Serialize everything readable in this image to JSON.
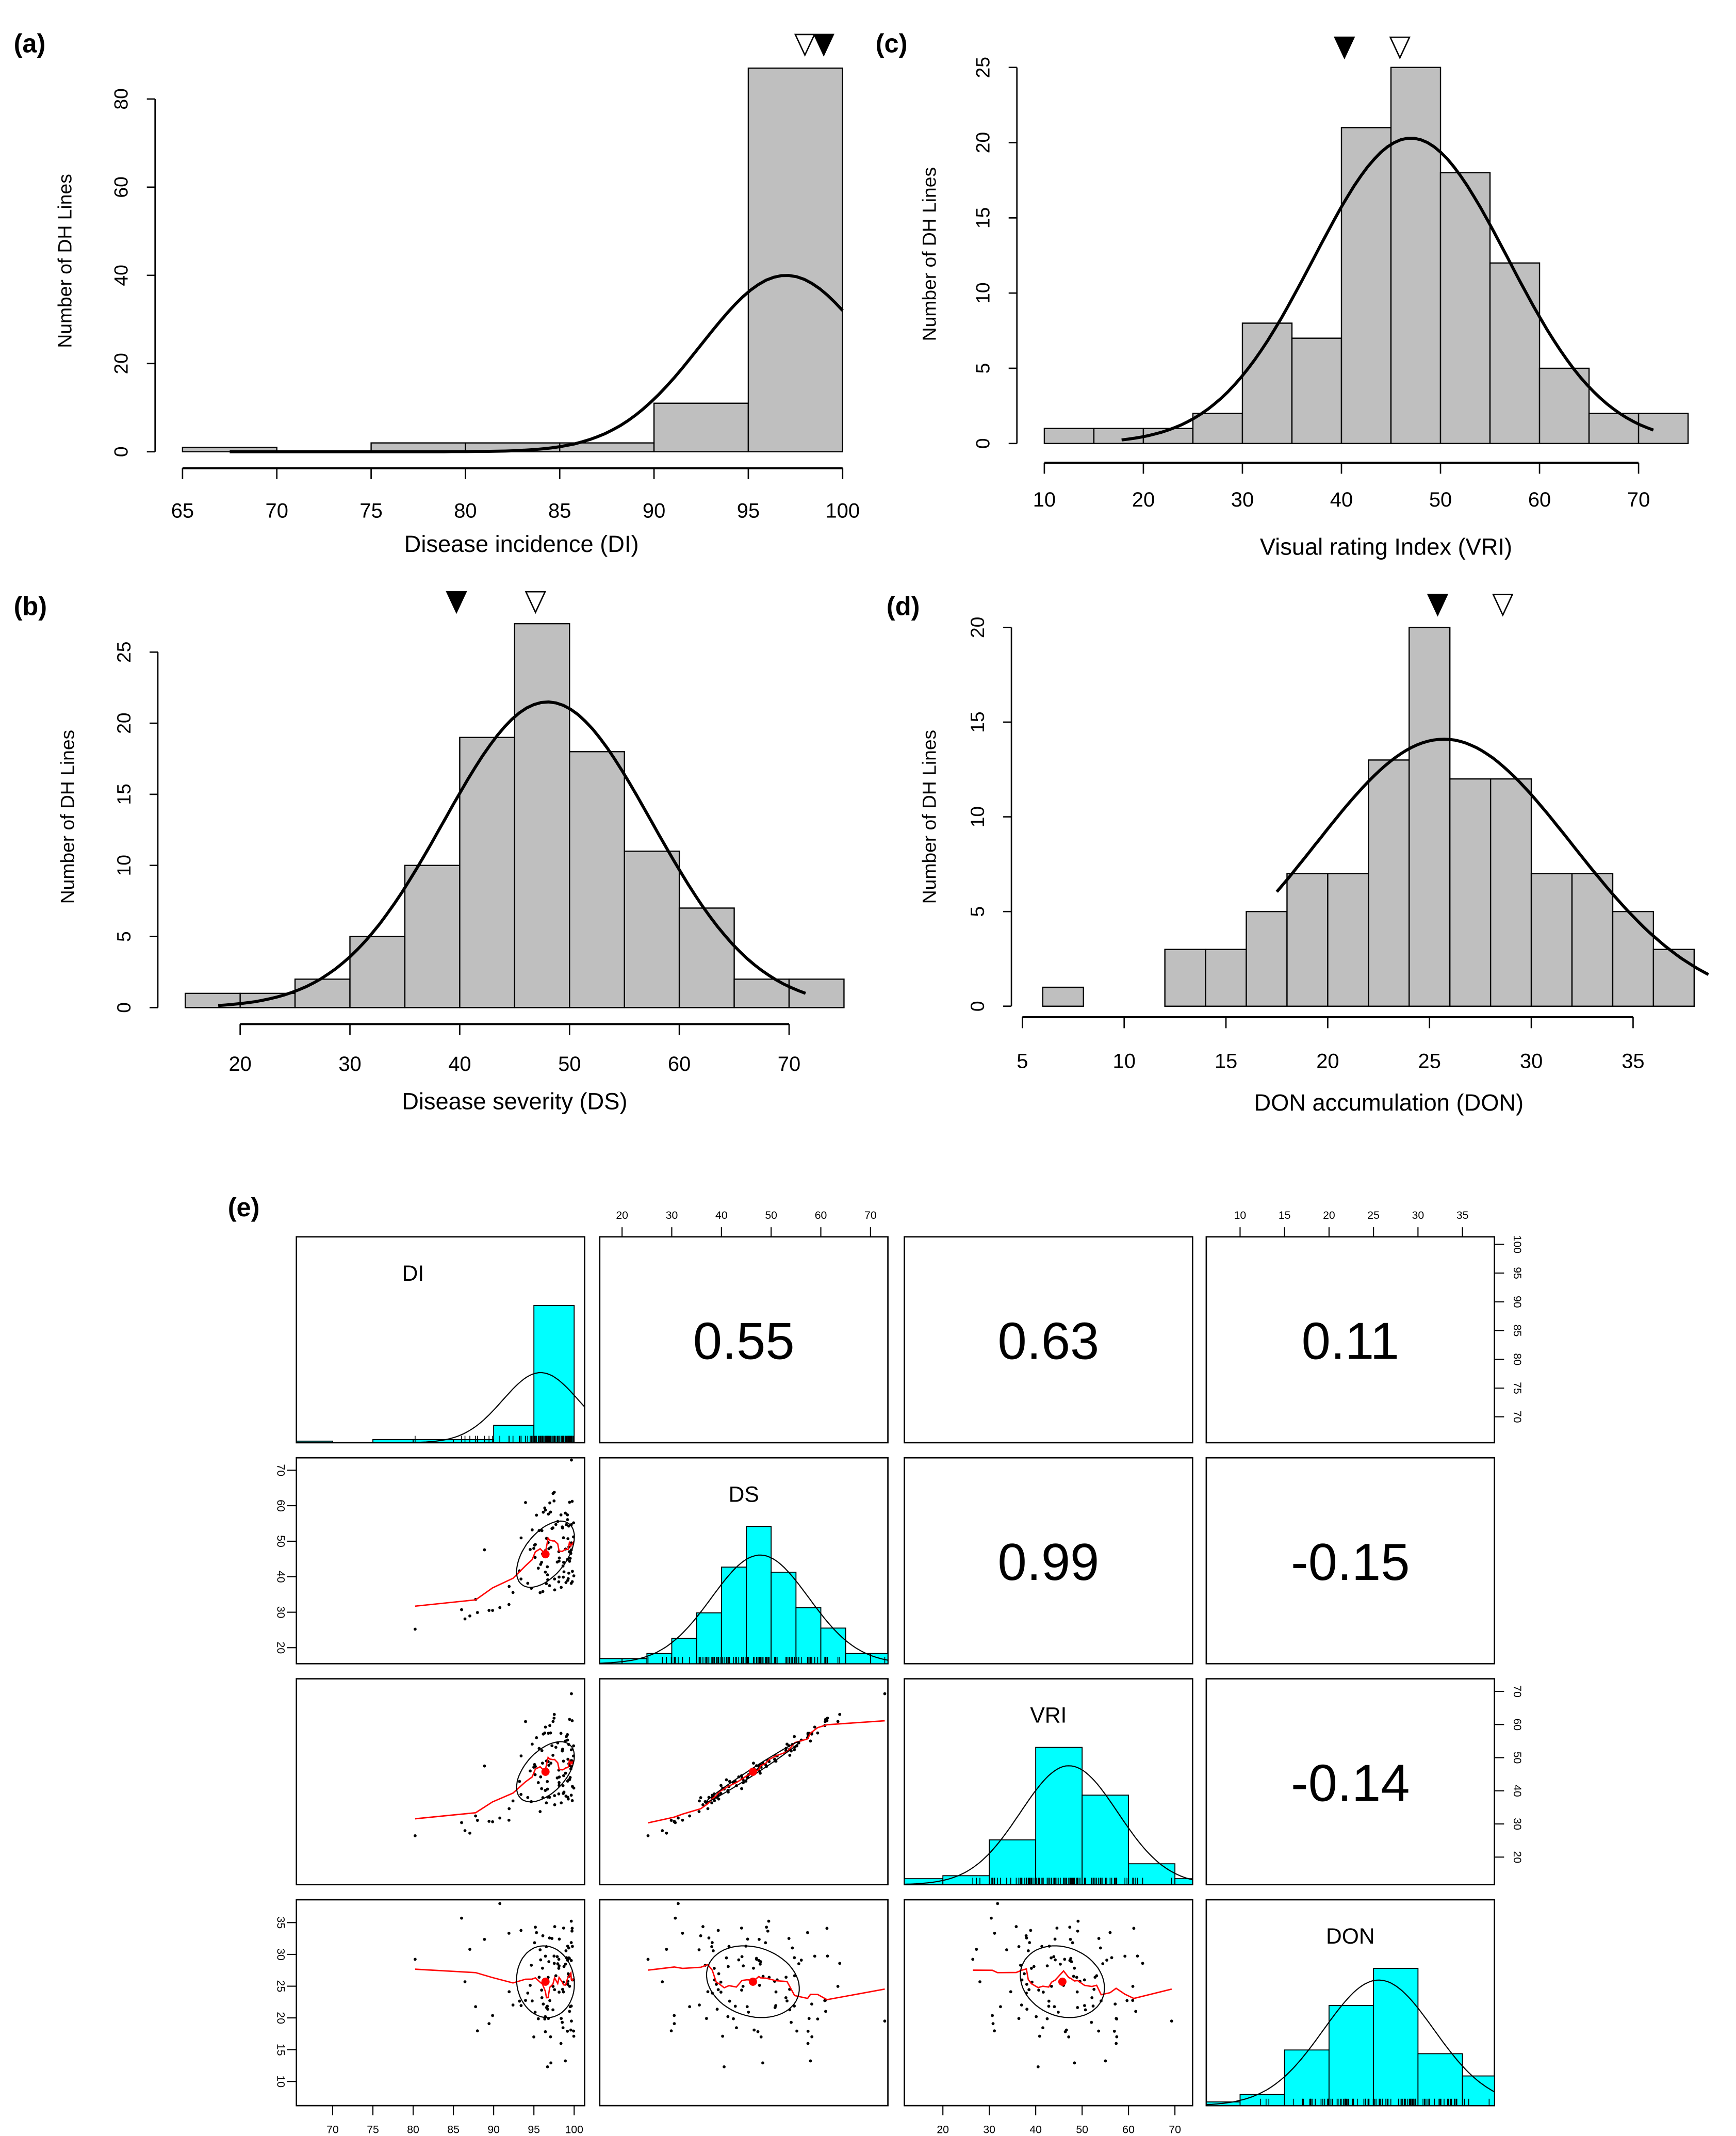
{
  "chart_data": [
    {
      "panel": "(a)",
      "type": "bar",
      "xlabel": "Disease incidence (DI)",
      "ylabel": "Number of DH Lines",
      "bin_start": 65,
      "bin_width": 5,
      "counts": [
        1,
        0,
        2,
        2,
        2,
        11,
        87
      ],
      "xticks": [
        65,
        70,
        75,
        80,
        85,
        90,
        95,
        100
      ],
      "yticks": [
        0,
        20,
        40,
        60,
        80
      ],
      "xlim": [
        65,
        100
      ],
      "ylim": [
        0,
        80
      ],
      "markers": {
        "filled": 99.0,
        "open": 98.0
      },
      "normal_curve": {
        "mean": 97,
        "sd": 4.5,
        "peak": 40,
        "range": [
          67.5,
          100
        ]
      }
    },
    {
      "panel": "(b)",
      "type": "bar",
      "xlabel": "Disease severity (DS)",
      "ylabel": "Number of DH Lines",
      "bin_start": 15,
      "bin_width": 5,
      "counts": [
        1,
        1,
        2,
        5,
        10,
        19,
        27,
        18,
        11,
        7,
        2,
        2
      ],
      "xticks": [
        20,
        30,
        40,
        50,
        60,
        70
      ],
      "yticks": [
        0,
        5,
        10,
        15,
        20,
        25
      ],
      "xlim": [
        20,
        70
      ],
      "ylim": [
        0,
        25
      ],
      "markers": {
        "filled": 39.7,
        "open": 46.9
      },
      "normal_curve": {
        "mean": 48,
        "sd": 9.5,
        "peak": 21.5,
        "range": [
          18,
          71.5
        ]
      }
    },
    {
      "panel": "(c)",
      "type": "bar",
      "xlabel": "Visual rating Index (VRI)",
      "ylabel": "Number of DH Lines",
      "bin_start": 10,
      "bin_width": 5,
      "counts": [
        1,
        1,
        1,
        2,
        8,
        7,
        21,
        25,
        18,
        12,
        5,
        2,
        2
      ],
      "xticks": [
        10,
        20,
        30,
        40,
        50,
        60,
        70
      ],
      "yticks": [
        0,
        5,
        10,
        15,
        20,
        25
      ],
      "xlim": [
        10,
        70
      ],
      "ylim": [
        0,
        25
      ],
      "markers": {
        "filled": 40.3,
        "open": 45.9
      },
      "normal_curve": {
        "mean": 47,
        "sd": 9.8,
        "peak": 20.3,
        "range": [
          17.8,
          71.5
        ]
      }
    },
    {
      "panel": "(d)",
      "type": "bar",
      "xlabel": "DON accumulation (DON)",
      "ylabel": "Number of DH Lines",
      "bin_start": 6,
      "bin_width": 2,
      "counts": [
        1,
        0,
        0,
        3,
        3,
        5,
        7,
        7,
        13,
        20,
        12,
        12,
        7,
        7,
        5,
        3
      ],
      "xticks": [
        5,
        10,
        15,
        20,
        25,
        30,
        35
      ],
      "yticks": [
        0,
        5,
        10,
        15,
        20
      ],
      "xlim": [
        5,
        35
      ],
      "ylim": [
        0,
        20
      ],
      "markers": {
        "filled": 25.4,
        "open": 28.6
      },
      "normal_curve": {
        "mean": 25.7,
        "sd": 6.3,
        "peak": 14.1,
        "range": [
          17.5,
          38.7
        ]
      }
    },
    {
      "panel": "(e)",
      "type": "scatter",
      "variables": [
        "DI",
        "DS",
        "VRI",
        "DON"
      ],
      "correlations": {
        "DI-DS": "0.55",
        "DI-VRI": "0.63",
        "DI-DON": "0.11",
        "DS-VRI": "0.99",
        "DS-DON": "-0.15",
        "VRI-DON": "-0.14"
      },
      "ticks": {
        "DI": [
          70,
          75,
          80,
          85,
          90,
          95,
          100
        ],
        "DS": [
          20,
          30,
          40,
          50,
          60,
          70
        ],
        "VRI": [
          20,
          30,
          40,
          50,
          60,
          70
        ],
        "DON": [
          10,
          15,
          20,
          25,
          30,
          35
        ]
      },
      "diag_hist": {
        "DI": {
          "bin_start": 65,
          "bin_width": 5,
          "counts": [
            1,
            0,
            2,
            2,
            2,
            11,
            87
          ]
        },
        "DS": {
          "bin_start": 15,
          "bin_width": 5,
          "counts": [
            1,
            1,
            2,
            5,
            10,
            19,
            27,
            18,
            11,
            7,
            2,
            2
          ]
        },
        "VRI": {
          "bin_start": 10,
          "bin_width": 10,
          "counts": [
            2,
            3,
            15,
            46,
            30,
            7,
            2
          ]
        },
        "DON": {
          "bin_start": 5,
          "bin_width": 5,
          "counts": [
            1,
            3,
            15,
            27,
            37,
            14,
            8
          ]
        }
      },
      "colors": {
        "hist": "#00ffff",
        "smooth": "#ff0000",
        "mean_point": "#ff0000"
      }
    }
  ]
}
